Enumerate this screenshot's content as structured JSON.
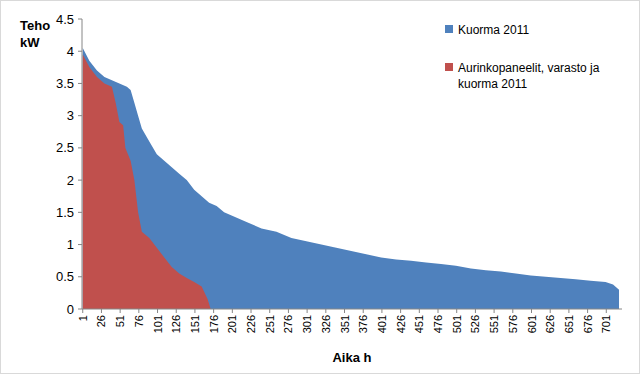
{
  "chart_data": {
    "type": "area",
    "x_label": "Aika h",
    "y_label": "Teho kW",
    "xlim": [
      0,
      722
    ],
    "ylim": [
      0,
      4.5
    ],
    "xticks": [
      1,
      26,
      51,
      76,
      101,
      126,
      151,
      176,
      201,
      226,
      251,
      276,
      301,
      326,
      351,
      376,
      401,
      426,
      451,
      476,
      501,
      526,
      551,
      576,
      601,
      626,
      651,
      676,
      701
    ],
    "yticks": [
      0,
      0.5,
      1,
      1.5,
      2,
      2.5,
      3,
      3.5,
      4,
      4.5
    ],
    "grid": false,
    "legend": "top-right",
    "series": [
      {
        "name": "Kuorma 2011",
        "color": "#4f81bd",
        "x": [
          1,
          10,
          20,
          30,
          40,
          50,
          60,
          65,
          70,
          75,
          80,
          90,
          100,
          110,
          120,
          130,
          140,
          150,
          160,
          170,
          180,
          190,
          200,
          220,
          240,
          260,
          280,
          300,
          320,
          340,
          360,
          380,
          400,
          420,
          440,
          460,
          480,
          500,
          520,
          540,
          560,
          580,
          600,
          620,
          640,
          660,
          680,
          700,
          710,
          718
        ],
        "values": [
          4.05,
          3.85,
          3.7,
          3.6,
          3.55,
          3.5,
          3.45,
          3.4,
          3.2,
          3.0,
          2.8,
          2.6,
          2.4,
          2.3,
          2.2,
          2.1,
          2.0,
          1.85,
          1.75,
          1.65,
          1.6,
          1.5,
          1.45,
          1.35,
          1.25,
          1.2,
          1.1,
          1.05,
          1.0,
          0.95,
          0.9,
          0.85,
          0.8,
          0.77,
          0.75,
          0.72,
          0.7,
          0.67,
          0.63,
          0.6,
          0.58,
          0.55,
          0.52,
          0.5,
          0.48,
          0.46,
          0.44,
          0.42,
          0.38,
          0.3
        ]
      },
      {
        "name": "Aurinkopaneelit, varasto ja kuorma 2011",
        "color": "#c0504d",
        "x": [
          1,
          10,
          20,
          30,
          40,
          45,
          50,
          55,
          58,
          65,
          70,
          75,
          80,
          90,
          100,
          110,
          120,
          130,
          140,
          150,
          160,
          168,
          172
        ],
        "values": [
          3.95,
          3.75,
          3.6,
          3.5,
          3.45,
          3.2,
          2.9,
          2.85,
          2.5,
          2.3,
          2.0,
          1.5,
          1.2,
          1.1,
          0.95,
          0.8,
          0.65,
          0.55,
          0.48,
          0.42,
          0.35,
          0.15,
          0
        ]
      }
    ]
  }
}
